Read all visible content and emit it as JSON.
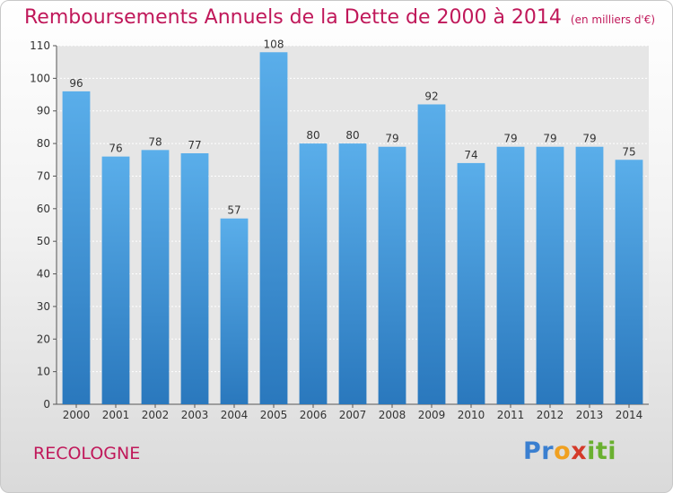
{
  "chart_data": {
    "type": "bar",
    "title": "Remboursements Annuels de la Dette de 2000 à 2014",
    "subtitle": "(en milliers d'€)",
    "categories": [
      "2000",
      "2001",
      "2002",
      "2003",
      "2004",
      "2005",
      "2006",
      "2007",
      "2008",
      "2009",
      "2010",
      "2011",
      "2012",
      "2013",
      "2014"
    ],
    "values": [
      96,
      76,
      78,
      77,
      57,
      108,
      80,
      80,
      79,
      92,
      74,
      79,
      79,
      79,
      75
    ],
    "ylim": [
      0,
      110
    ],
    "yticks": [
      0,
      10,
      20,
      30,
      40,
      50,
      60,
      70,
      80,
      90,
      100,
      110
    ],
    "grid": true,
    "data_labels": true,
    "bar_color": "#3f8fd4"
  },
  "footer": {
    "commune": "RECOLOGNE",
    "logo_letters": [
      "P",
      "r",
      "o",
      "x",
      "i",
      "t",
      "i"
    ],
    "logo_colors": [
      "#3a7fd0",
      "#3a7fd0",
      "#f0a020",
      "#d43a2a",
      "#6ab030",
      "#6ab030",
      "#6ab030"
    ]
  }
}
